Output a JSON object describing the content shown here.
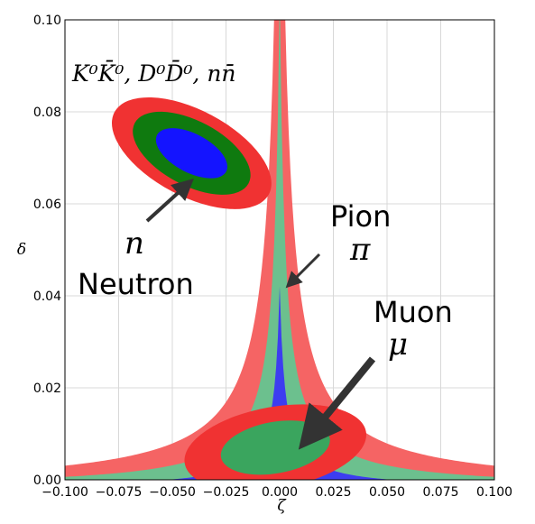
{
  "chart_data": {
    "type": "contour",
    "xlabel": "ζ",
    "ylabel": "δ",
    "xlim": [
      -0.1,
      0.1
    ],
    "ylim": [
      0.0,
      0.1
    ],
    "grid": true,
    "x_ticks": [
      "−0.100",
      "−0.075",
      "−0.050",
      "−0.025",
      "0.000",
      "0.025",
      "0.050",
      "0.075",
      "0.100"
    ],
    "x_tick_values": [
      -0.1,
      -0.075,
      -0.05,
      -0.025,
      0.0,
      0.025,
      0.05,
      0.075,
      0.1
    ],
    "y_ticks": [
      "0.00",
      "0.02",
      "0.04",
      "0.06",
      "0.08",
      "0.10"
    ],
    "y_tick_values": [
      0.0,
      0.02,
      0.04,
      0.06,
      0.08,
      0.1
    ],
    "colors": {
      "outer": "#f03232",
      "middle": "#0f7a0f",
      "inner": "#1414ff",
      "pion_outer": "#f56464",
      "pion_middle": "#6cc08e",
      "pion_inner": "#3d3df0",
      "muon_inner": "#3aa55e"
    },
    "regions": [
      {
        "id": "neutron",
        "center": [
          -0.041,
          0.071
        ],
        "contours": [
          {
            "level": "outer",
            "semi_axis_x": 0.02,
            "semi_axis_y": 0.019,
            "angle_deg": -62
          },
          {
            "level": "middle",
            "semi_axis_x": 0.015,
            "semi_axis_y": 0.014,
            "angle_deg": -62
          },
          {
            "level": "inner",
            "semi_axis_x": 0.009,
            "semi_axis_y": 0.0085,
            "angle_deg": -62
          }
        ]
      },
      {
        "id": "pion",
        "center_zeta": 0.0,
        "contours": [
          {
            "level": "outer",
            "k": 0.00052
          },
          {
            "level": "middle",
            "k": 0.00027
          },
          {
            "level": "inner",
            "k": 0.00011
          }
        ]
      },
      {
        "id": "muon",
        "center": [
          -0.002,
          0.007
        ],
        "contours": [
          {
            "level": "outer",
            "semi_axis_x": 0.019,
            "semi_axis_y": 0.02,
            "angle_deg": -100
          },
          {
            "level": "inner",
            "semi_axis_x": 0.012,
            "semi_axis_y": 0.012,
            "angle_deg": -100
          }
        ]
      }
    ],
    "annotations": [
      {
        "text": "K⁰K̄⁰, D⁰D̄⁰, nn̄",
        "at": [
          -0.064,
          0.088
        ]
      },
      {
        "text": "n",
        "at": [
          -0.063,
          0.051
        ]
      },
      {
        "text": "Neutron",
        "at": [
          -0.06,
          0.041
        ]
      },
      {
        "text": "Pion",
        "at": [
          0.028,
          0.057
        ]
      },
      {
        "text": "π",
        "at": [
          0.032,
          0.048
        ]
      },
      {
        "text": "Muon",
        "at": [
          0.048,
          0.034
        ]
      },
      {
        "text": "μ",
        "at": [
          0.052,
          0.027
        ]
      }
    ]
  },
  "labels": {
    "meson_pairs": "K⁰K̄⁰, D⁰D̄⁰, nn̄",
    "neutron_symbol": "n",
    "neutron": "Neutron",
    "pion": "Pion",
    "pion_symbol": "π",
    "muon": "Muon",
    "muon_symbol": "μ"
  }
}
